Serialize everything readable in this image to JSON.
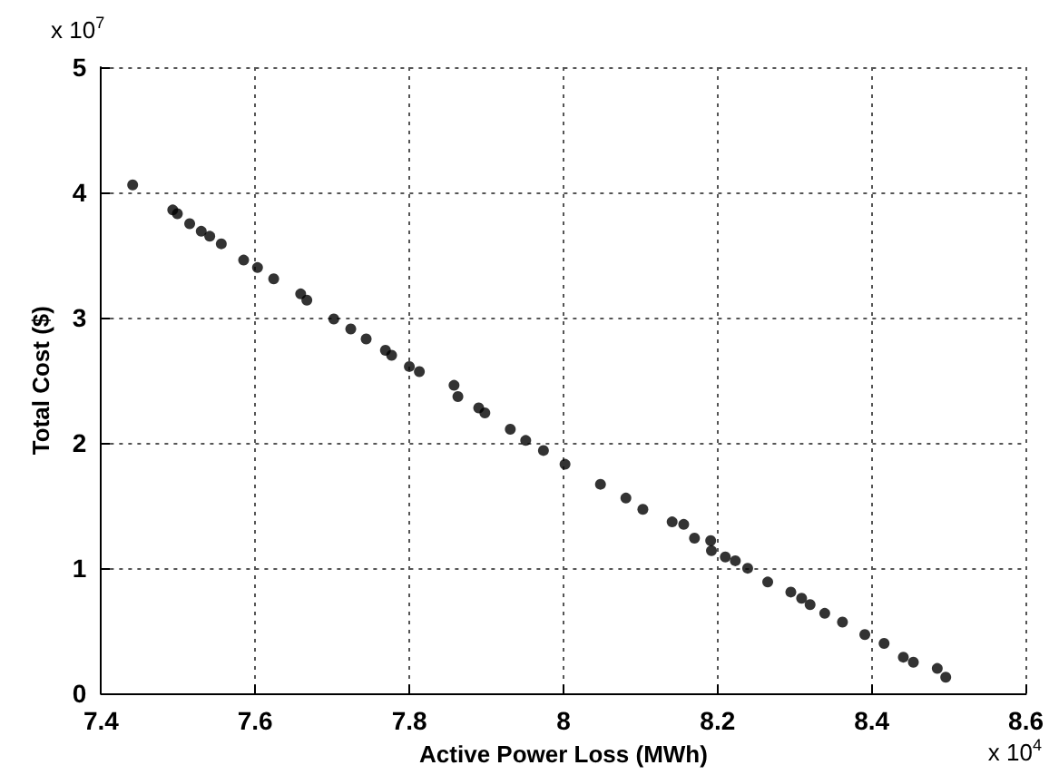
{
  "chart_data": {
    "type": "scatter",
    "xlabel": "Active Power Loss (MWh)",
    "ylabel": "Total Cost ($)",
    "annotations": [
      "x 10$^{7}$",
      "x 10$^{4}$"
    ],
    "x": [
      7.441,
      7.493,
      7.499,
      7.515,
      7.53,
      7.541,
      7.556,
      7.585,
      7.603,
      7.624,
      7.659,
      7.667,
      7.702,
      7.724,
      7.744,
      7.769,
      7.777,
      7.8,
      7.813,
      7.858,
      7.863,
      7.89,
      7.898,
      7.931,
      7.951,
      7.974,
      8.002,
      8.048,
      8.081,
      8.103,
      8.141,
      8.156,
      8.17,
      8.191,
      8.192,
      8.21,
      8.223,
      8.239,
      8.265,
      8.295,
      8.309,
      8.32,
      8.339,
      8.362,
      8.391,
      8.416,
      8.441,
      8.454,
      8.485,
      8.496
    ],
    "series": [
      {
        "color": "#000000",
        "values": [
          4.06,
          3.86,
          3.83,
          3.75,
          3.69,
          3.65,
          3.59,
          3.46,
          3.4,
          3.31,
          3.19,
          3.14,
          2.99,
          2.91,
          2.83,
          2.74,
          2.7,
          2.61,
          2.57,
          2.46,
          2.37,
          2.28,
          2.24,
          2.11,
          2.02,
          1.94,
          1.83,
          1.67,
          1.56,
          1.47,
          1.37,
          1.35,
          1.24,
          1.22,
          1.14,
          1.09,
          1.06,
          1.0,
          0.89,
          0.81,
          0.76,
          0.71,
          0.64,
          0.57,
          0.47,
          0.4,
          0.29,
          0.25,
          0.2,
          0.13
        ]
      }
    ],
    "xlim": [
      7.4,
      8.6
    ],
    "xticks": [
      7.4,
      7.6,
      7.8,
      8,
      8.2,
      8.4,
      8.6
    ],
    "ylim": [
      0,
      5
    ],
    "yticks": [
      0,
      1,
      2,
      3,
      4,
      5
    ],
    "grid": true,
    "marker": "circle"
  }
}
